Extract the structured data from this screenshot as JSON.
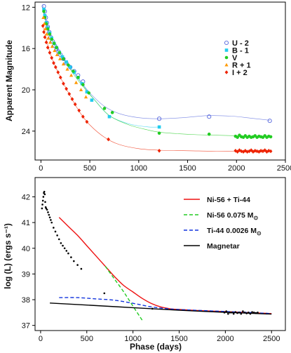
{
  "chart_data": [
    {
      "type": "scatter",
      "xlabel": "",
      "ylabel": "Apparent Magnitude",
      "xlim": [
        -60,
        2500
      ],
      "ylim": [
        26.8,
        11.5
      ],
      "y_inverted": true,
      "x_ticks": [
        "0",
        "500",
        "1000",
        "1500",
        "2000",
        "2500"
      ],
      "x_tick_values": [
        0,
        500,
        1000,
        1500,
        2000,
        2500
      ],
      "y_ticks": [
        "12",
        "16",
        "20",
        "24"
      ],
      "y_tick_values": [
        12,
        16,
        20,
        24
      ],
      "legend_position": "right",
      "series": [
        {
          "name": "U - 2",
          "color": "#5566dd",
          "marker": "open-circle",
          "x": [
            30,
            40,
            50,
            60,
            70,
            85,
            100,
            120,
            140,
            160,
            180,
            200,
            230,
            260,
            300,
            340,
            380,
            430,
            1210,
            1720,
            2340
          ],
          "y": [
            11.9,
            12.4,
            13.0,
            13.5,
            13.9,
            14.4,
            14.9,
            15.3,
            15.7,
            16.0,
            16.3,
            16.6,
            17.0,
            17.4,
            17.8,
            18.2,
            18.6,
            19.2,
            22.8,
            22.6,
            23.0
          ],
          "curve_x": [
            20,
            60,
            120,
            200,
            300,
            400,
            500,
            650,
            800,
            1000,
            1200,
            1450,
            1700,
            1950,
            2150,
            2340
          ],
          "curve_y": [
            11.8,
            13.5,
            15.3,
            16.6,
            17.9,
            19.1,
            20.3,
            21.6,
            22.3,
            22.7,
            22.8,
            22.7,
            22.5,
            22.55,
            22.75,
            22.95
          ]
        },
        {
          "name": "B - 1",
          "color": "#22ccee",
          "marker": "square",
          "x": [
            30,
            40,
            55,
            70,
            90,
            110,
            135,
            160,
            190,
            220,
            260,
            300,
            340,
            380,
            420,
            470,
            520,
            700,
            1210
          ],
          "y": [
            12.2,
            12.8,
            13.5,
            14.0,
            14.5,
            15.0,
            15.5,
            15.9,
            16.4,
            16.8,
            17.3,
            17.8,
            18.3,
            18.8,
            19.4,
            20.2,
            21.0,
            22.6,
            23.6
          ],
          "curve_x": [
            20,
            70,
            150,
            250,
            350,
            450,
            550,
            700,
            900,
            1100,
            1210
          ],
          "curve_y": [
            12.1,
            14.0,
            15.8,
            17.2,
            18.5,
            19.8,
            21.0,
            22.5,
            23.3,
            23.6,
            23.6
          ]
        },
        {
          "name": "V",
          "color": "#22cc22",
          "marker": "filled-circle",
          "x": [
            30,
            40,
            55,
            70,
            90,
            110,
            135,
            160,
            190,
            230,
            280,
            330,
            380,
            430,
            490,
            650,
            730,
            1210,
            1720,
            1990,
            2010,
            2030,
            2050,
            2070,
            2090,
            2110,
            2130,
            2150,
            2170,
            2190,
            2210,
            2230,
            2250,
            2270,
            2290,
            2310,
            2330,
            2350
          ],
          "y": [
            12.4,
            13.0,
            13.6,
            14.1,
            14.6,
            15.1,
            15.5,
            15.9,
            16.4,
            17.0,
            17.6,
            18.2,
            18.8,
            19.5,
            20.3,
            21.8,
            22.2,
            24.2,
            24.3,
            24.5,
            24.6,
            24.4,
            24.55,
            24.6,
            24.45,
            24.6,
            24.5,
            24.6,
            24.55,
            24.45,
            24.6,
            24.5,
            24.55,
            24.6,
            24.45,
            24.6,
            24.5,
            24.55
          ],
          "curve_x": [
            20,
            80,
            150,
            250,
            350,
            450,
            550,
            700,
            900,
            1100,
            1210,
            1400,
            1600,
            1800,
            2000,
            2200,
            2350
          ],
          "curve_y": [
            12.3,
            14.3,
            15.8,
            17.3,
            18.7,
            19.9,
            21.0,
            22.5,
            23.4,
            23.9,
            24.1,
            24.25,
            24.35,
            24.4,
            24.45,
            24.5,
            24.55
          ]
        },
        {
          "name": "R + 1",
          "color": "#ff9900",
          "marker": "triangle",
          "x": [
            25,
            35,
            45,
            60,
            75,
            95,
            115,
            140,
            165,
            195,
            230,
            270,
            310,
            360,
            410,
            460
          ],
          "y": [
            13.0,
            13.6,
            14.1,
            14.6,
            15.0,
            15.4,
            15.8,
            16.2,
            16.6,
            17.0,
            17.5,
            18.0,
            18.6,
            19.3,
            20.0,
            20.7
          ],
          "curve_x": [],
          "curve_y": []
        },
        {
          "name": "I + 2",
          "color": "#ee2200",
          "marker": "diamond",
          "x": [
            20,
            30,
            40,
            55,
            70,
            90,
            110,
            130,
            150,
            175,
            200,
            230,
            260,
            290,
            320,
            350,
            390,
            430,
            470,
            690,
            1210,
            1990,
            2010,
            2030,
            2050,
            2070,
            2090,
            2110,
            2130,
            2150,
            2170,
            2190,
            2210,
            2230,
            2250,
            2270,
            2290,
            2310,
            2330,
            2350
          ],
          "y": [
            13.8,
            14.4,
            14.9,
            15.4,
            15.9,
            16.4,
            16.9,
            17.4,
            17.8,
            18.3,
            18.8,
            19.4,
            19.9,
            20.4,
            20.9,
            21.4,
            22.0,
            22.6,
            23.1,
            24.8,
            25.9,
            25.9,
            26.0,
            25.85,
            25.95,
            26.0,
            25.9,
            26.0,
            25.95,
            25.85,
            26.0,
            25.9,
            25.95,
            26.0,
            25.9,
            25.95,
            25.85,
            26.0,
            25.9,
            25.95
          ],
          "curve_x": [
            20,
            100,
            200,
            300,
            400,
            500,
            650,
            800,
            1000,
            1210,
            1500,
            1800,
            2100,
            2350
          ],
          "curve_y": [
            13.8,
            16.6,
            18.8,
            20.6,
            22.2,
            23.4,
            24.6,
            25.3,
            25.7,
            25.85,
            25.9,
            25.95,
            25.95,
            25.9
          ]
        }
      ]
    },
    {
      "type": "line",
      "xlabel": "Phase (days)",
      "ylabel": "log (L) (ergs s⁻¹)",
      "xlim": [
        -60,
        2650
      ],
      "ylim": [
        36.8,
        42.75
      ],
      "x_ticks": [
        "0",
        "500",
        "1000",
        "1500",
        "2000",
        "2500"
      ],
      "x_tick_values": [
        0,
        500,
        1000,
        1500,
        2000,
        2500
      ],
      "y_ticks": [
        "37",
        "38",
        "39",
        "40",
        "41",
        "42"
      ],
      "y_tick_values": [
        37,
        38,
        39,
        40,
        41,
        42
      ],
      "legend_position": "top-right",
      "legend_label_parts": [
        {
          "text": "Ni-56 + Ti-44",
          "unit": ""
        },
        {
          "text": "Ni-56  0.075 M",
          "unit": "⊙"
        },
        {
          "text": "Ti-44  0.0026 M",
          "unit": "⊙"
        },
        {
          "text": "Magnetar",
          "unit": ""
        }
      ],
      "series": [
        {
          "name": "Ni-56 + Ti-44",
          "color": "#ee1111",
          "style": "solid",
          "x": [
            200,
            300,
            400,
            500,
            600,
            700,
            800,
            900,
            1000,
            1100,
            1200,
            1300,
            1400,
            1500,
            1700,
            1900,
            2100,
            2300,
            2500
          ],
          "y": [
            41.2,
            40.85,
            40.5,
            40.1,
            39.7,
            39.3,
            38.9,
            38.55,
            38.3,
            38.05,
            37.85,
            37.72,
            37.65,
            37.62,
            37.58,
            37.55,
            37.52,
            37.49,
            37.46
          ]
        },
        {
          "name": "Ni-56  0.075 M⊙",
          "color": "#22cc22",
          "style": "dashed",
          "x": [
            700,
            800,
            900,
            1000,
            1100
          ],
          "y": [
            39.3,
            38.8,
            38.3,
            37.75,
            37.2
          ]
        },
        {
          "name": "Ti-44  0.0026 M⊙",
          "color": "#1133dd",
          "style": "dashed",
          "x": [
            200,
            400,
            600,
            800,
            1000,
            1200,
            1400,
            1600,
            2000,
            2500
          ],
          "y": [
            38.08,
            38.08,
            38.03,
            37.98,
            37.86,
            37.72,
            37.64,
            37.6,
            37.54,
            37.46
          ]
        },
        {
          "name": "Magnetar",
          "color": "#000000",
          "style": "solid",
          "x": [
            100,
            500,
            1000,
            1500,
            2000,
            2500
          ],
          "y": [
            37.87,
            37.79,
            37.69,
            37.59,
            37.51,
            37.44
          ]
        },
        {
          "name": "",
          "color": "#000000",
          "style": "data",
          "x": [
            15,
            20,
            25,
            30,
            35,
            40,
            45,
            50,
            55,
            60,
            70,
            80,
            90,
            100,
            110,
            120,
            140,
            160,
            180,
            200,
            220,
            240,
            260,
            280,
            300,
            330,
            360,
            400,
            440,
            690,
            1210,
            1990,
            2010,
            2030,
            2050,
            2070,
            2090,
            2110,
            2130,
            2150,
            2170,
            2190,
            2210,
            2230,
            2250,
            2270,
            2290,
            2310,
            2330,
            2350
          ],
          "y": [
            41.55,
            41.7,
            41.85,
            42.0,
            42.15,
            42.2,
            42.1,
            41.8,
            41.6,
            41.55,
            41.5,
            41.4,
            41.3,
            41.2,
            41.1,
            41.0,
            40.8,
            40.65,
            40.5,
            40.35,
            40.2,
            40.1,
            40.0,
            39.9,
            39.8,
            39.65,
            39.5,
            39.35,
            39.2,
            38.25,
            37.65,
            37.5,
            37.55,
            37.45,
            37.5,
            37.5,
            37.45,
            37.52,
            37.48,
            37.5,
            37.45,
            37.55,
            37.5,
            37.47,
            37.5,
            37.45,
            37.52,
            37.5,
            37.48,
            37.5
          ]
        }
      ]
    }
  ]
}
